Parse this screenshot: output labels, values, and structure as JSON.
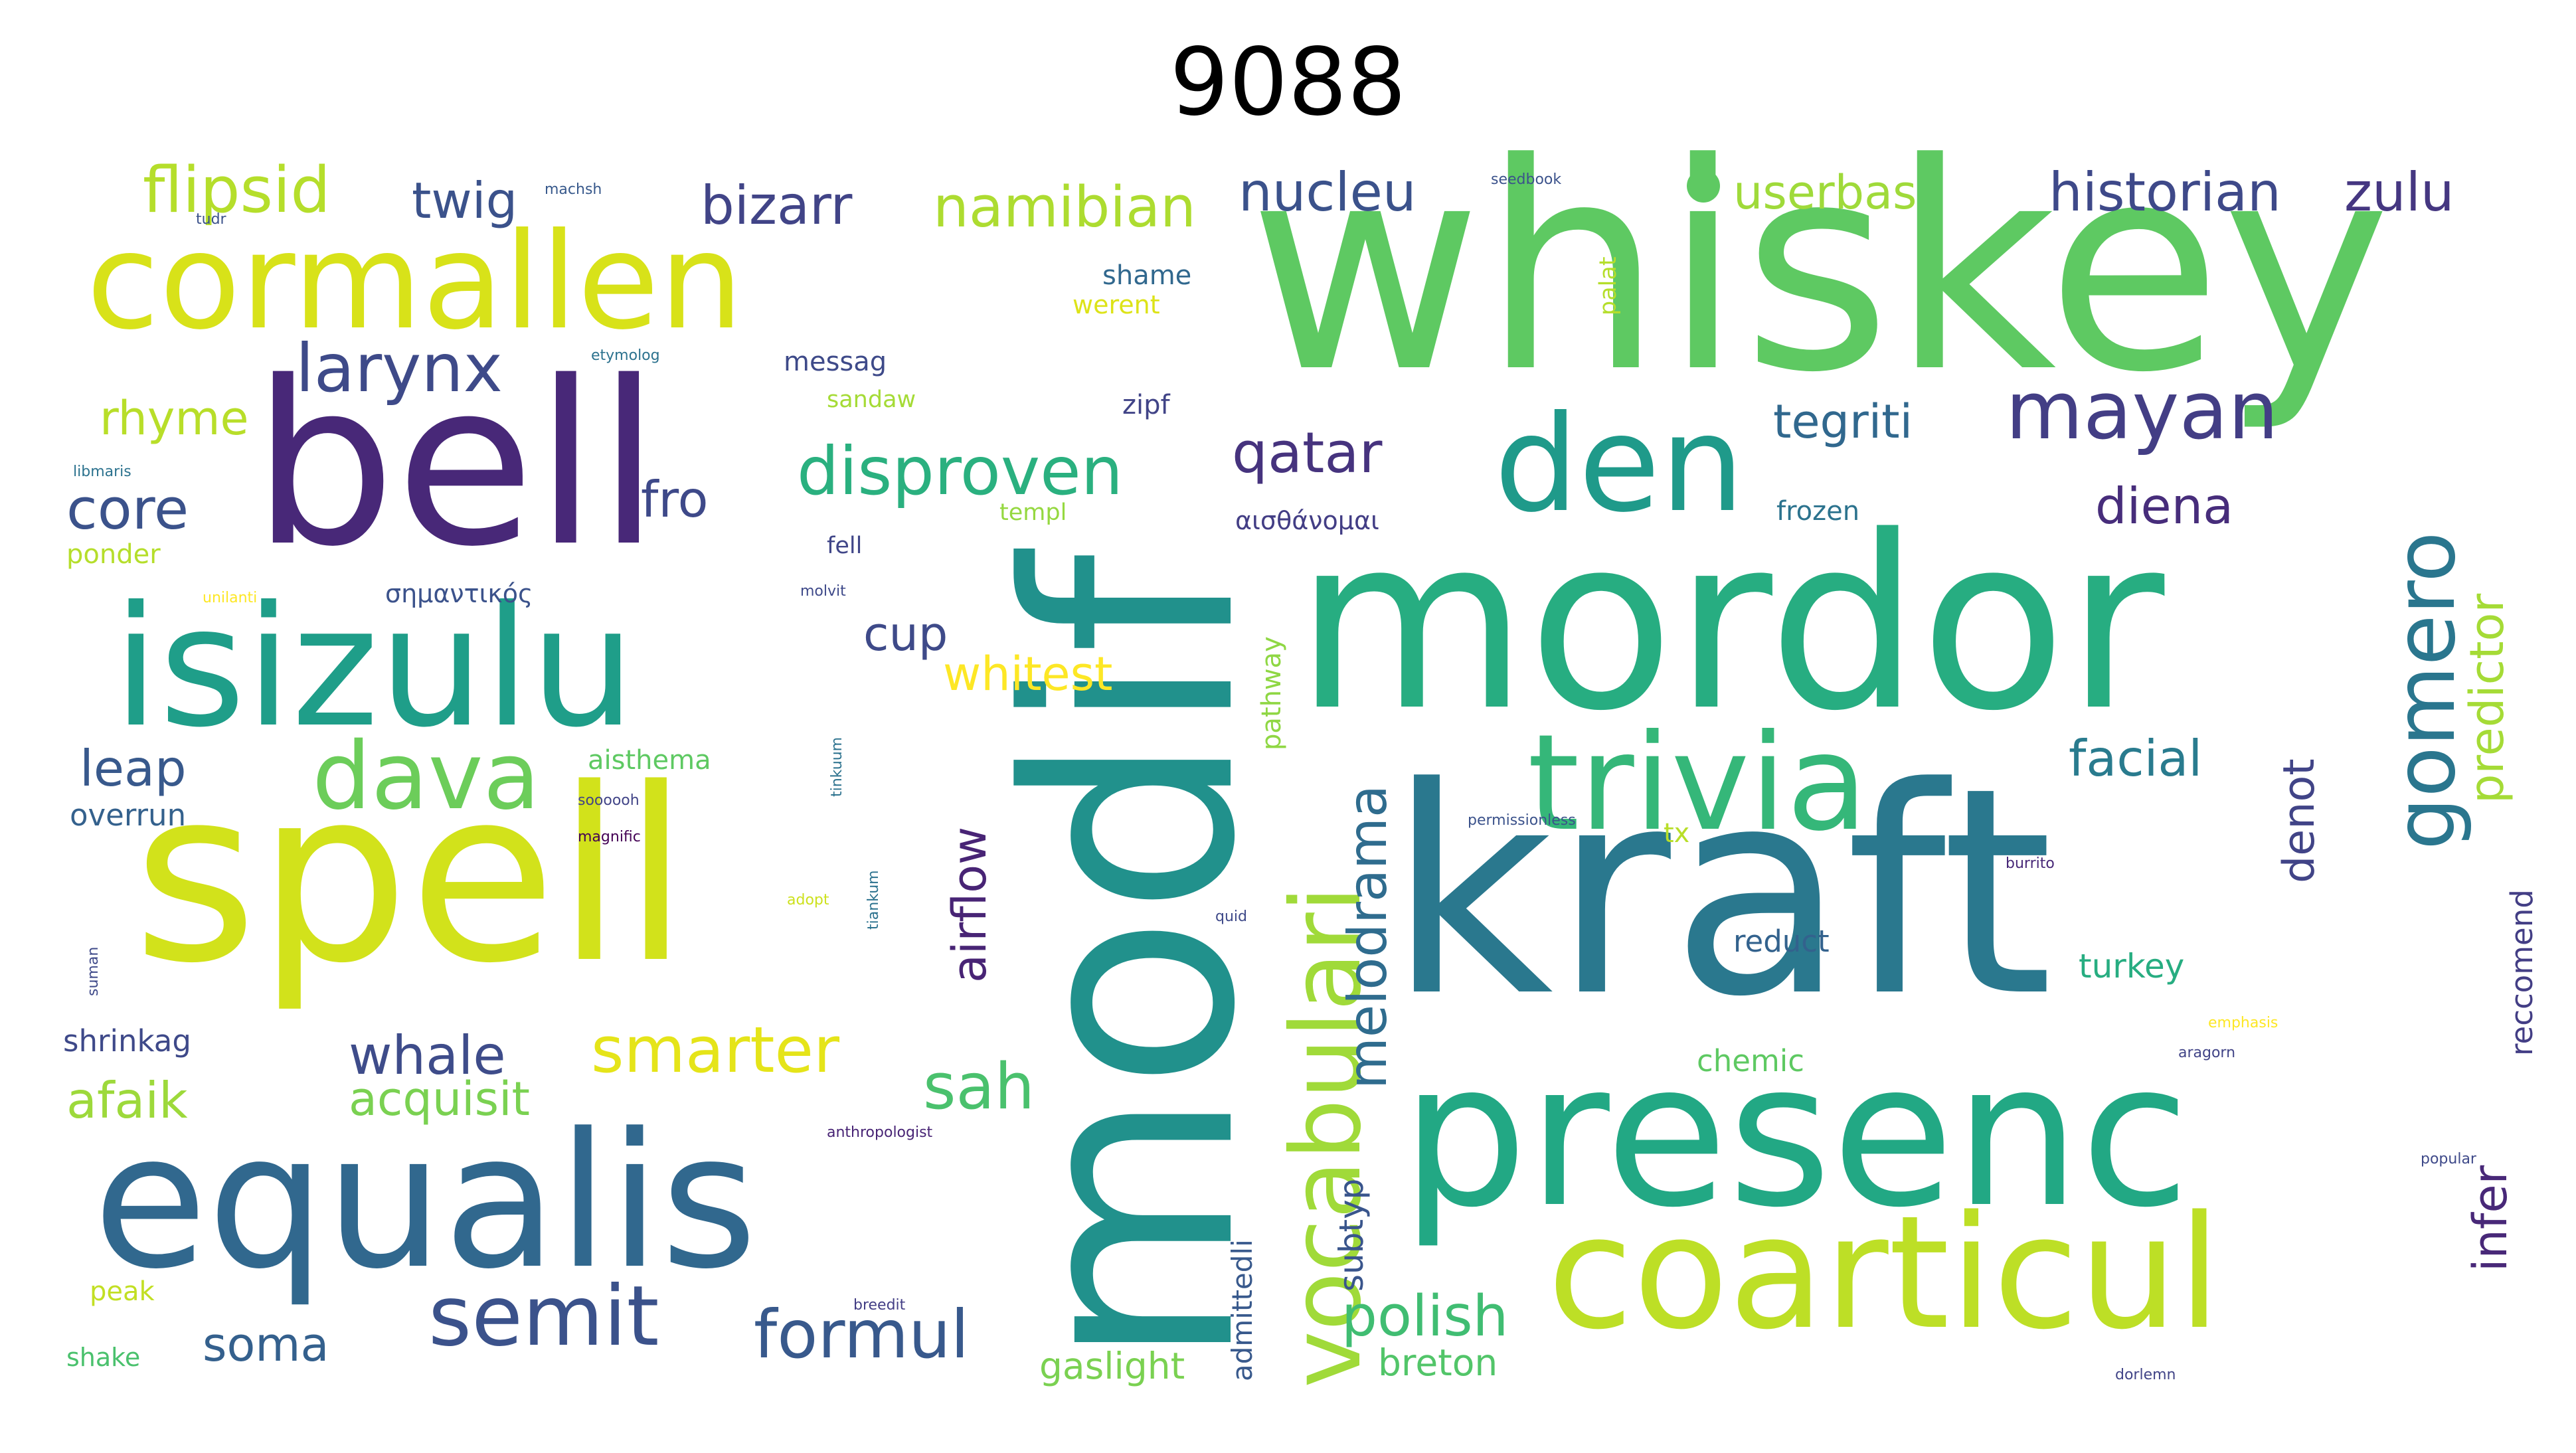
{
  "title": "9088",
  "colormap": "viridis",
  "background": "#ffffff",
  "words": [
    {
      "text": "whiskey",
      "color": "#5ec962",
      "weight": 1.0
    },
    {
      "text": "modif",
      "color": "#21918c",
      "weight": 0.98,
      "vertical": true
    },
    {
      "text": "kraft",
      "color": "#2a788e",
      "weight": 0.98
    },
    {
      "text": "mordor",
      "color": "#27ad81",
      "weight": 0.86
    },
    {
      "text": "spell",
      "color": "#d2e21b",
      "weight": 0.85
    },
    {
      "text": "bell",
      "color": "#482878",
      "weight": 0.8
    },
    {
      "text": "presenc",
      "color": "#22a884",
      "weight": 0.72
    },
    {
      "text": "equalis",
      "color": "#31688e",
      "weight": 0.66
    },
    {
      "text": "isizulu",
      "color": "#1f9e89",
      "weight": 0.6
    },
    {
      "text": "cormallen",
      "color": "#d8e219",
      "weight": 0.56
    },
    {
      "text": "coarticul",
      "color": "#bddf26",
      "weight": 0.56
    },
    {
      "text": "trivia",
      "color": "#35b779",
      "weight": 0.54
    },
    {
      "text": "den",
      "color": "#1f9a8a",
      "weight": 0.48
    },
    {
      "text": "vocabulari",
      "color": "#a0da39",
      "weight": 0.44,
      "vertical": true
    },
    {
      "text": "gomero",
      "color": "#2a768e",
      "weight": 0.34,
      "vertical": true
    },
    {
      "text": "dava",
      "color": "#6ccd5a",
      "weight": 0.32
    },
    {
      "text": "semit",
      "color": "#3b528b",
      "weight": 0.3
    },
    {
      "text": "mayan",
      "color": "#433e85",
      "weight": 0.28
    },
    {
      "text": "disproven",
      "color": "#2ab07f",
      "weight": 0.26
    },
    {
      "text": "formul",
      "color": "#38598c",
      "weight": 0.24
    },
    {
      "text": "larynx",
      "color": "#3e4a89",
      "weight": 0.24
    },
    {
      "text": "flipsid",
      "color": "#b5de2b",
      "weight": 0.22
    },
    {
      "text": "namibian",
      "color": "#addc30",
      "weight": 0.22
    },
    {
      "text": "smarter",
      "color": "#e5e419",
      "weight": 0.22
    },
    {
      "text": "melodrama",
      "color": "#2f6c8e",
      "weight": 0.22,
      "vertical": true
    },
    {
      "text": "sah",
      "color": "#4ac16d",
      "weight": 0.22
    },
    {
      "text": "qatar",
      "color": "#46337e",
      "weight": 0.2
    },
    {
      "text": "polish",
      "color": "#40bd72",
      "weight": 0.2
    },
    {
      "text": "bizarr",
      "color": "#414487",
      "weight": 0.2
    },
    {
      "text": "nucleu",
      "color": "#3b528b",
      "weight": 0.2
    },
    {
      "text": "historian",
      "color": "#3e4989",
      "weight": 0.2
    },
    {
      "text": "zulu",
      "color": "#453781",
      "weight": 0.2
    },
    {
      "text": "core",
      "color": "#3b528b",
      "weight": 0.2
    },
    {
      "text": "whale",
      "color": "#3e4c8a",
      "weight": 0.2
    },
    {
      "text": "airflow",
      "color": "#482475",
      "weight": 0.2,
      "vertical": true
    },
    {
      "text": "predictor",
      "color": "#a5db36",
      "weight": 0.2,
      "vertical": true
    },
    {
      "text": "twig",
      "color": "#3b528b",
      "weight": 0.18
    },
    {
      "text": "userbas",
      "color": "#9fda3a",
      "weight": 0.18
    },
    {
      "text": "tegriti",
      "color": "#31688e",
      "weight": 0.18
    },
    {
      "text": "diena",
      "color": "#472d7b",
      "weight": 0.18
    },
    {
      "text": "fro",
      "color": "#3e4989",
      "weight": 0.18
    },
    {
      "text": "rhyme",
      "color": "#b8de29",
      "weight": 0.18
    },
    {
      "text": "acquisit",
      "color": "#7ad151",
      "weight": 0.18
    },
    {
      "text": "afaik",
      "color": "#9dd93b",
      "weight": 0.18
    },
    {
      "text": "leap",
      "color": "#38598c",
      "weight": 0.18
    },
    {
      "text": "soma",
      "color": "#34608d",
      "weight": 0.18
    },
    {
      "text": "facial",
      "color": "#297b8e",
      "weight": 0.18
    },
    {
      "text": "cup",
      "color": "#3e4a89",
      "weight": 0.16
    },
    {
      "text": "whitest",
      "color": "#fde725",
      "weight": 0.16
    },
    {
      "text": "denot",
      "color": "#414487",
      "weight": 0.16,
      "vertical": true
    },
    {
      "text": "infer",
      "color": "#482878",
      "weight": 0.16,
      "vertical": true
    },
    {
      "text": "breton",
      "color": "#52c569",
      "weight": 0.12
    },
    {
      "text": "gaslight",
      "color": "#7ad151",
      "weight": 0.12
    },
    {
      "text": "subtyp",
      "color": "#39558c",
      "weight": 0.12,
      "vertical": true
    },
    {
      "text": "reccomend",
      "color": "#433e85",
      "weight": 0.1,
      "vertical": true
    },
    {
      "text": "turkey",
      "color": "#27ad81",
      "weight": 0.1
    },
    {
      "text": "reduct",
      "color": "#33628d",
      "weight": 0.1
    },
    {
      "text": "chemic",
      "color": "#5ec962",
      "weight": 0.1
    },
    {
      "text": "shrinkag",
      "color": "#3e4989",
      "weight": 0.1
    },
    {
      "text": "overrun",
      "color": "#34618d",
      "weight": 0.09
    },
    {
      "text": "pathway",
      "color": "#8fd744",
      "weight": 0.09,
      "vertical": true
    },
    {
      "text": "admittedli",
      "color": "#38598c",
      "weight": 0.09,
      "vertical": true
    },
    {
      "text": "aisthema",
      "color": "#5ec962",
      "weight": 0.09
    },
    {
      "text": "αισθάνομαι",
      "color": "#433e85",
      "weight": 0.08
    },
    {
      "text": "σημαντικός",
      "color": "#3b528b",
      "weight": 0.08
    },
    {
      "text": "frozen",
      "color": "#2c738e",
      "weight": 0.08
    },
    {
      "text": "shame",
      "color": "#31688e",
      "weight": 0.08
    },
    {
      "text": "werent",
      "color": "#dde318",
      "weight": 0.08
    },
    {
      "text": "messag",
      "color": "#3e4a89",
      "weight": 0.08
    },
    {
      "text": "zipf",
      "color": "#414487",
      "weight": 0.08
    },
    {
      "text": "sandaw",
      "color": "#a5db36",
      "weight": 0.07
    },
    {
      "text": "templ",
      "color": "#95d840",
      "weight": 0.07
    },
    {
      "text": "fell",
      "color": "#404688",
      "weight": 0.07
    },
    {
      "text": "ponder",
      "color": "#b5de2b",
      "weight": 0.07
    },
    {
      "text": "peak",
      "color": "#c2df23",
      "weight": 0.07
    },
    {
      "text": "shake",
      "color": "#4ac16d",
      "weight": 0.07
    },
    {
      "text": "tx",
      "color": "#b8de29",
      "weight": 0.07
    },
    {
      "text": "palat",
      "color": "#b5de2b",
      "weight": 0.06,
      "vertical": true
    },
    {
      "text": "popular",
      "color": "#3e4989",
      "weight": 0.04
    },
    {
      "text": "aragorn",
      "color": "#414487",
      "weight": 0.04
    },
    {
      "text": "emphasis",
      "color": "#fde725",
      "weight": 0.04
    },
    {
      "text": "burrito",
      "color": "#482878",
      "weight": 0.04
    },
    {
      "text": "anthropologist",
      "color": "#482475",
      "weight": 0.04
    },
    {
      "text": "permissionless",
      "color": "#3b528b",
      "weight": 0.04
    },
    {
      "text": "etymolog",
      "color": "#2c728e",
      "weight": 0.04
    },
    {
      "text": "quid",
      "color": "#3e4989",
      "weight": 0.04
    },
    {
      "text": "magnific",
      "color": "#440154",
      "weight": 0.04
    },
    {
      "text": "soooooh",
      "color": "#414487",
      "weight": 0.04
    },
    {
      "text": "machsh",
      "color": "#38598c",
      "weight": 0.04
    },
    {
      "text": "tudr",
      "color": "#3b528b",
      "weight": 0.04
    },
    {
      "text": "breedit",
      "color": "#433e85",
      "weight": 0.04
    },
    {
      "text": "adopt",
      "color": "#cde11d",
      "weight": 0.04
    },
    {
      "text": "seedbook",
      "color": "#3b528b",
      "weight": 0.04
    },
    {
      "text": "libmaris",
      "color": "#2c728e",
      "weight": 0.04
    },
    {
      "text": "molvit",
      "color": "#3e4989",
      "weight": 0.04
    },
    {
      "text": "unilanti",
      "color": "#fde725",
      "weight": 0.04
    },
    {
      "text": "tinkuum",
      "color": "#2c728e",
      "weight": 0.04,
      "vertical": true
    },
    {
      "text": "suman",
      "color": "#3e4989",
      "weight": 0.04,
      "vertical": true
    },
    {
      "text": "dorlemn",
      "color": "#414487",
      "weight": 0.04
    },
    {
      "text": "tiankum",
      "color": "#2c728e",
      "weight": 0.04,
      "vertical": true
    }
  ]
}
